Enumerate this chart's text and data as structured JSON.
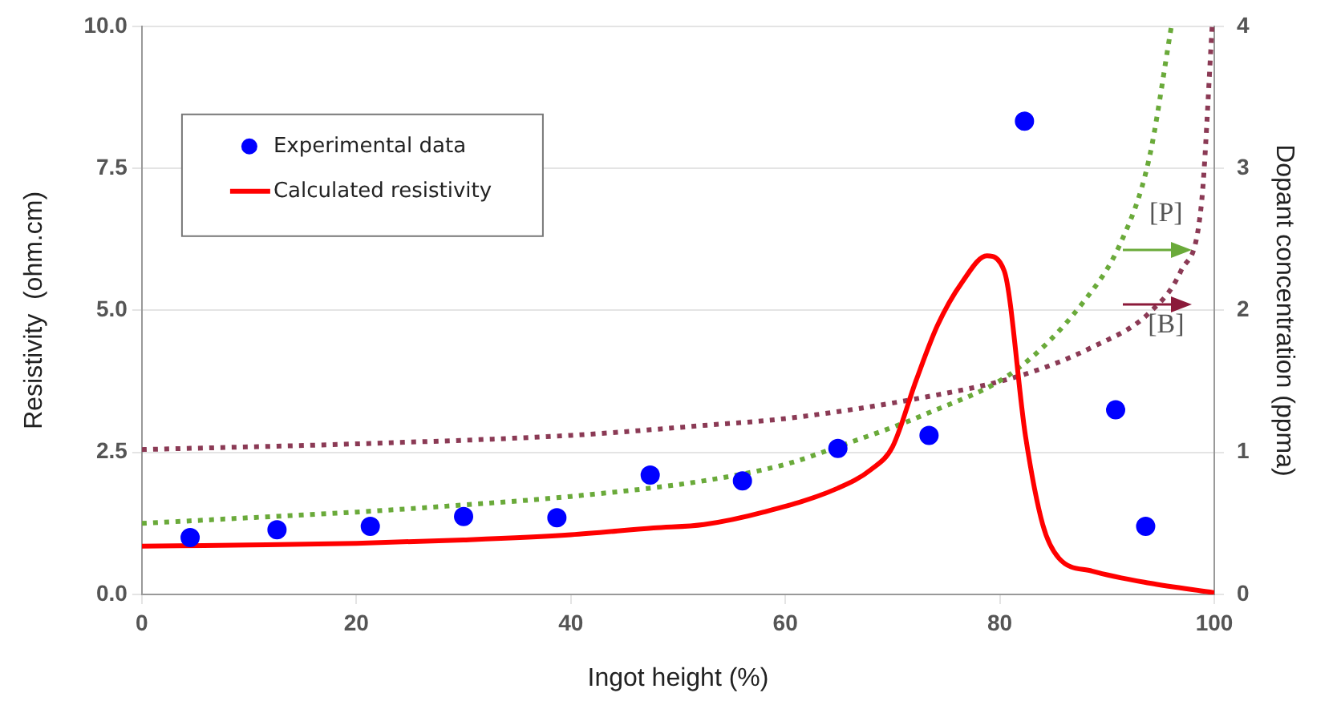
{
  "chart_data": {
    "type": "scatter",
    "xlabel": "Ingot height (%)",
    "ylabel": "Resistivity  (ohm.cm)",
    "y2label": "Dopant concentration (ppma)",
    "xlim": [
      0,
      100
    ],
    "xticks": [
      0,
      20,
      40,
      60,
      80,
      100
    ],
    "ylim": [
      0,
      10
    ],
    "yticks": [
      {
        "value": 0,
        "label": "0.0"
      },
      {
        "value": 2.5,
        "label": "2.5"
      },
      {
        "value": 5,
        "label": "5.0"
      },
      {
        "value": 7.5,
        "label": "7.5"
      },
      {
        "value": 10,
        "label": "10.0"
      }
    ],
    "y2lim": [
      0,
      4
    ],
    "y2ticks": [
      0,
      1,
      2,
      3,
      4
    ],
    "grid": "y",
    "legend": "top left",
    "series": [
      {
        "name": "Experimental data",
        "type": "scatter",
        "marker": "circle",
        "color": "#0000ff",
        "x": [
          4.5,
          12.6,
          21.3,
          30.0,
          38.7,
          47.4,
          56.0,
          64.9,
          73.4,
          82.3,
          90.8,
          93.6
        ],
        "values": [
          1.0,
          1.14,
          1.2,
          1.37,
          1.35,
          2.1,
          2.0,
          2.57,
          2.8,
          8.33,
          3.25,
          1.2
        ]
      },
      {
        "name": "Calculated resistivity",
        "type": "line",
        "marker": "none",
        "line_style": "solid",
        "color": "#ff0000",
        "x": [
          0,
          10,
          20,
          30,
          40,
          47.7,
          52.4,
          58,
          64.9,
          68,
          70,
          72.2,
          74.2,
          76.5,
          78.8,
          80.4,
          82.4,
          84,
          85.5,
          88.6,
          93.9,
          100
        ],
        "values": [
          0.85,
          0.87,
          0.9,
          0.96,
          1.05,
          1.17,
          1.23,
          1.45,
          1.87,
          2.2,
          2.6,
          3.77,
          4.74,
          5.5,
          5.96,
          5.7,
          2.78,
          1.23,
          0.64,
          0.41,
          0.2,
          0.03
        ]
      },
      {
        "type": "line",
        "axis": "y2",
        "marker": "none",
        "line_style": "dotted",
        "color": "#6aaa3a",
        "x": [
          0,
          10,
          20,
          30,
          40,
          52.4,
          60.2,
          64.9,
          73.1,
          81.5,
          87.7,
          91.3,
          93.9,
          96
        ],
        "values": [
          0.5,
          0.54,
          0.58,
          0.63,
          0.69,
          0.8,
          0.92,
          1.04,
          1.27,
          1.58,
          2.05,
          2.48,
          3.06,
          4.0
        ]
      },
      {
        "type": "line",
        "axis": "y2",
        "marker": "none",
        "line_style": "dotted",
        "color": "#8b3a55",
        "x": [
          0,
          20,
          40,
          52.4,
          60.2,
          73.1,
          81.9,
          88.6,
          93.9,
          96.9,
          98.8,
          99.8
        ],
        "values": [
          1.02,
          1.06,
          1.12,
          1.19,
          1.24,
          1.39,
          1.54,
          1.74,
          1.98,
          2.28,
          2.75,
          4.0
        ]
      }
    ],
    "annotations": [
      "[P]",
      "[B]"
    ]
  }
}
